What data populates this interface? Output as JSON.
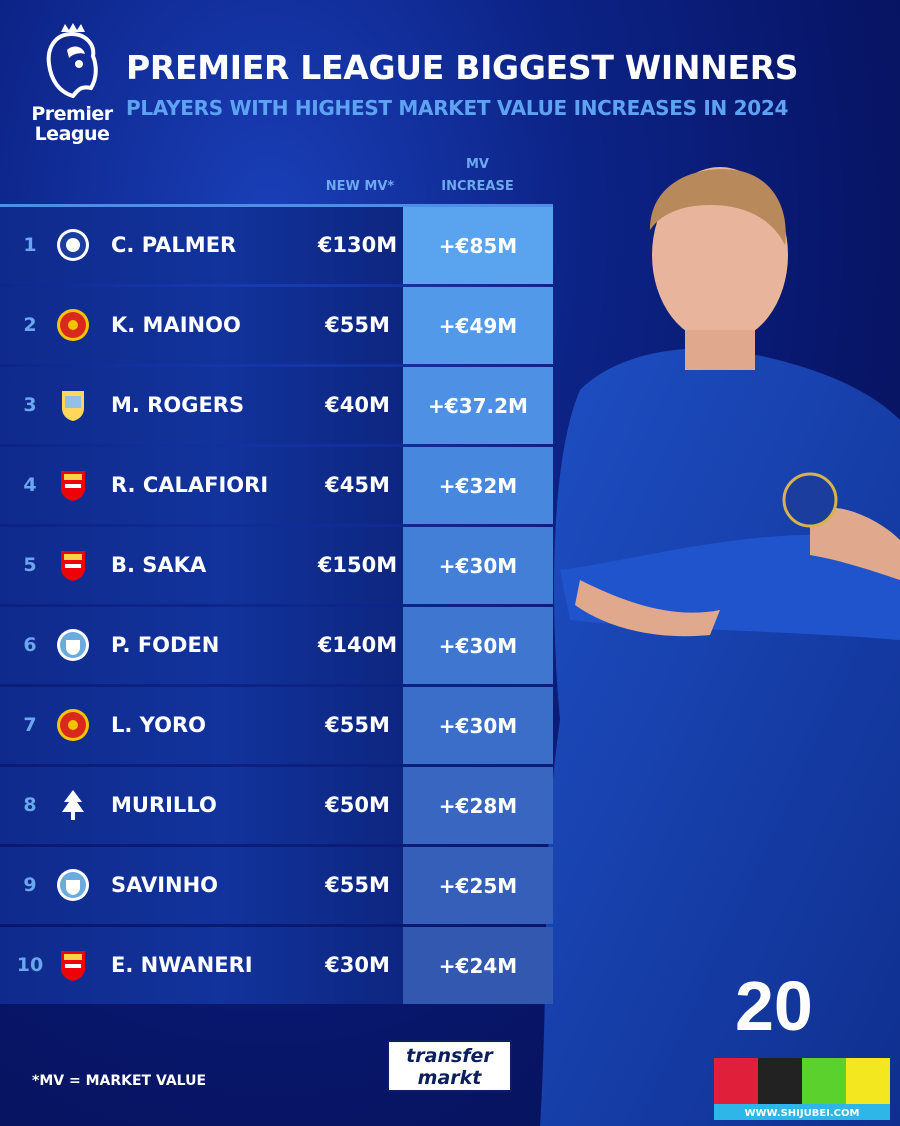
{
  "header": {
    "logo_text": "Premier League",
    "title": "PREMIER LEAGUE BIGGEST WINNERS",
    "subtitle": "PLAYERS WITH HIGHEST MARKET VALUE INCREASES IN 2024"
  },
  "columns": {
    "new_mv": "NEW MV*",
    "mv_increase_line1": "MV",
    "mv_increase_line2": "INCREASE"
  },
  "rows": [
    {
      "rank": "1",
      "club_icon": "chelsea-crest",
      "name": "C. PALMER",
      "new_mv": "€130M",
      "increase": "+€85M",
      "color": "#5aa3ef"
    },
    {
      "rank": "2",
      "club_icon": "man-united-crest",
      "name": "K. MAINOO",
      "new_mv": "€55M",
      "increase": "+€49M",
      "color": "#5399ea"
    },
    {
      "rank": "3",
      "club_icon": "aston-villa-crest",
      "name": "M. ROGERS",
      "new_mv": "€40M",
      "increase": "+€37.2M",
      "color": "#4d90e4"
    },
    {
      "rank": "4",
      "club_icon": "arsenal-crest",
      "name": "R. CALAFIORI",
      "new_mv": "€45M",
      "increase": "+€32M",
      "color": "#4887de"
    },
    {
      "rank": "5",
      "club_icon": "arsenal-crest",
      "name": "B. SAKA",
      "new_mv": "€150M",
      "increase": "+€30M",
      "color": "#437ed7"
    },
    {
      "rank": "6",
      "club_icon": "man-city-crest",
      "name": "P. FODEN",
      "new_mv": "€140M",
      "increase": "+€30M",
      "color": "#3f76d0"
    },
    {
      "rank": "7",
      "club_icon": "man-united-crest",
      "name": "L. YORO",
      "new_mv": "€55M",
      "increase": "+€30M",
      "color": "#3b6ec8"
    },
    {
      "rank": "8",
      "club_icon": "nottingham-forest-crest",
      "name": "MURILLO",
      "new_mv": "€50M",
      "increase": "+€28M",
      "color": "#3866c0"
    },
    {
      "rank": "9",
      "club_icon": "man-city-crest",
      "name": "SAVINHO",
      "new_mv": "€55M",
      "increase": "+€25M",
      "color": "#355fb8"
    },
    {
      "rank": "10",
      "club_icon": "arsenal-crest",
      "name": "E. NWANERI",
      "new_mv": "€30M",
      "increase": "+€24M",
      "color": "#3258af"
    }
  ],
  "footer": {
    "note": "*MV = MARKET VALUE",
    "brand_logo_text": "transfer markt",
    "watermark_text": "WWW.SHIJUBEI.COM"
  },
  "colors": {
    "background": "#0c2386",
    "accent": "#5ea3f2"
  }
}
